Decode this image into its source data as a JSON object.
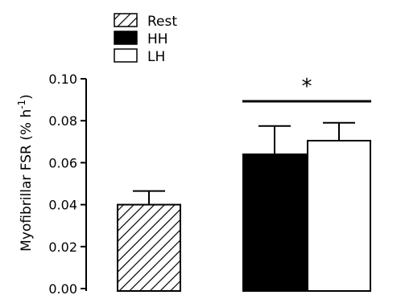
{
  "chart_data": {
    "type": "bar",
    "categories": [
      "Rest",
      "HH",
      "LH"
    ],
    "series": [
      {
        "name": "Rest",
        "value": 0.04,
        "error": 0.0065,
        "fill": "hatch"
      },
      {
        "name": "HH",
        "value": 0.064,
        "error": 0.0135,
        "fill": "#000000"
      },
      {
        "name": "LH",
        "value": 0.0705,
        "error": 0.0085,
        "fill": "#ffffff"
      }
    ],
    "ylabel": "Myofibrillar FSR (% h",
    "ylabel_sup": "-1",
    "ylabel_end": ")",
    "ylim": [
      0,
      0.1
    ],
    "yticks": [
      "0.00",
      "0.02",
      "0.04",
      "0.06",
      "0.08",
      "0.10"
    ],
    "ytick_values": [
      0,
      0.02,
      0.04,
      0.06,
      0.08,
      0.1
    ],
    "legend": [
      {
        "label": "Rest",
        "fill": "hatch"
      },
      {
        "label": "HH",
        "fill": "#000000"
      },
      {
        "label": "LH",
        "fill": "#ffffff"
      }
    ],
    "legend_position": "top-left",
    "annotation": "*",
    "grid": false
  }
}
